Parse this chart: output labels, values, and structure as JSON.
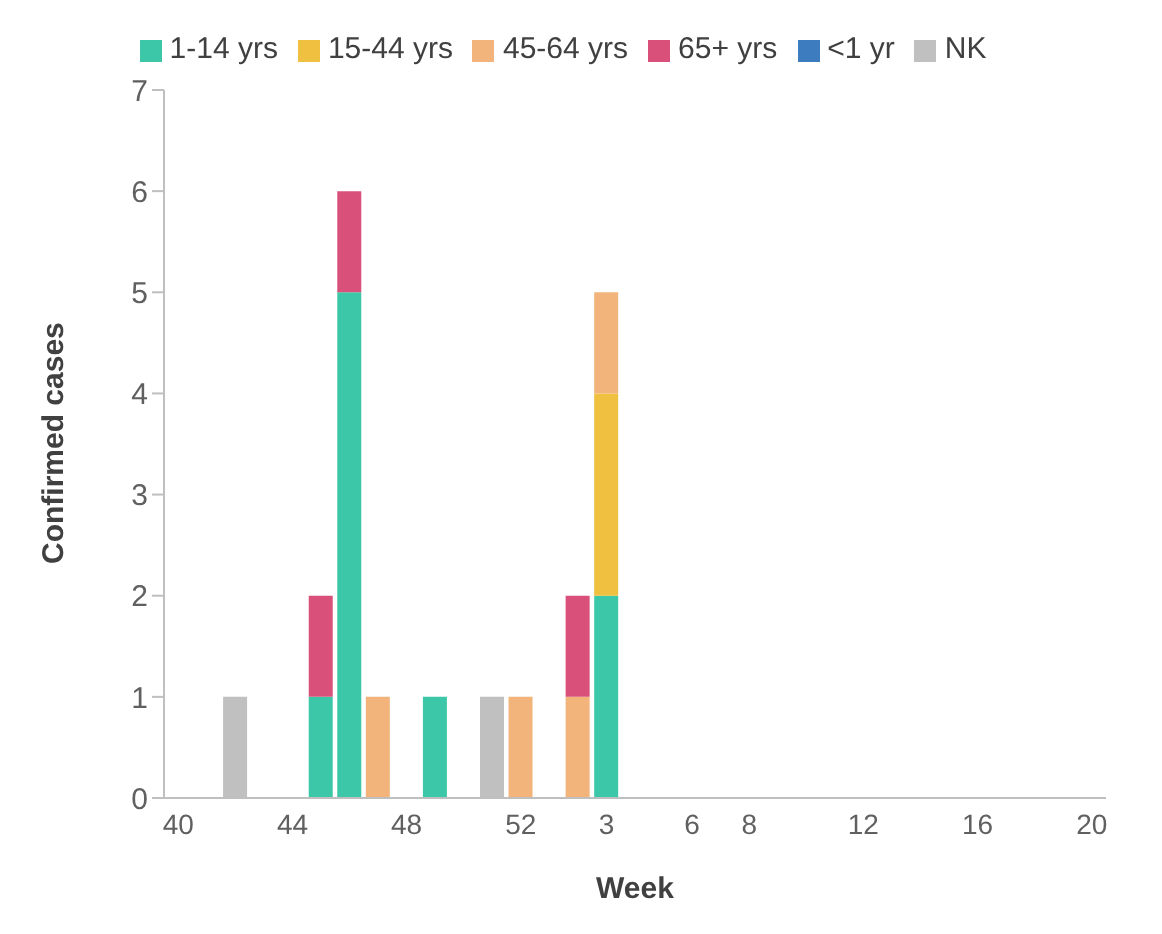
{
  "chart_data": {
    "type": "bar",
    "stacked": true,
    "xlabel": "Week",
    "ylabel": "Confirmed cases",
    "categories": [
      "40",
      null,
      null,
      null,
      "44",
      null,
      null,
      null,
      "48",
      null,
      null,
      null,
      "52",
      null,
      null,
      "3",
      null,
      null,
      "6",
      null,
      "8",
      null,
      null,
      null,
      "12",
      null,
      null,
      null,
      "16",
      null,
      null,
      null,
      "20"
    ],
    "series": [
      {
        "name": "<1 yr",
        "color": "#3d7dbf",
        "values": [
          null,
          null,
          null,
          null,
          null,
          null,
          null,
          null,
          null,
          null,
          null,
          null,
          null,
          null,
          null,
          null,
          null,
          null,
          null,
          null,
          null,
          null,
          null,
          null,
          null,
          null,
          null,
          null,
          null,
          null,
          null,
          null,
          null
        ]
      },
      {
        "name": "1-14 yrs",
        "color": "#3cc8a8",
        "values": [
          null,
          null,
          null,
          null,
          null,
          1,
          5,
          null,
          null,
          1,
          null,
          null,
          null,
          null,
          null,
          2,
          null,
          null,
          null,
          null,
          null,
          null,
          null,
          null,
          null,
          null,
          null,
          null,
          null,
          null,
          null,
          null,
          null
        ]
      },
      {
        "name": "15-44 yrs",
        "color": "#f0c040",
        "values": [
          null,
          null,
          null,
          null,
          null,
          null,
          null,
          null,
          null,
          null,
          null,
          null,
          null,
          null,
          null,
          2,
          null,
          null,
          null,
          null,
          null,
          null,
          null,
          null,
          null,
          null,
          null,
          null,
          null,
          null,
          null,
          null,
          null
        ]
      },
      {
        "name": "45-64 yrs",
        "color": "#f2b47a",
        "values": [
          null,
          null,
          null,
          null,
          null,
          null,
          null,
          1,
          null,
          null,
          null,
          null,
          1,
          null,
          1,
          1,
          null,
          null,
          null,
          null,
          null,
          null,
          null,
          null,
          null,
          null,
          null,
          null,
          null,
          null,
          null,
          null,
          null
        ]
      },
      {
        "name": "65+ yrs",
        "color": "#d9507a",
        "values": [
          null,
          null,
          null,
          null,
          null,
          1,
          1,
          null,
          null,
          null,
          null,
          null,
          null,
          null,
          1,
          null,
          null,
          null,
          null,
          null,
          null,
          null,
          null,
          null,
          null,
          null,
          null,
          null,
          null,
          null,
          null,
          null,
          null
        ]
      },
      {
        "name": "NK",
        "color": "#c0c0c0",
        "values": [
          null,
          null,
          1,
          null,
          null,
          null,
          null,
          null,
          null,
          null,
          null,
          1,
          null,
          null,
          null,
          null,
          null,
          null,
          null,
          null,
          null,
          null,
          null,
          null,
          null,
          null,
          null,
          null,
          null,
          null,
          null,
          null,
          null
        ]
      }
    ],
    "ylim": [
      0,
      7
    ],
    "yticks": [
      0,
      1,
      2,
      3,
      4,
      5,
      6,
      7
    ],
    "grid": false,
    "legend": "top"
  }
}
